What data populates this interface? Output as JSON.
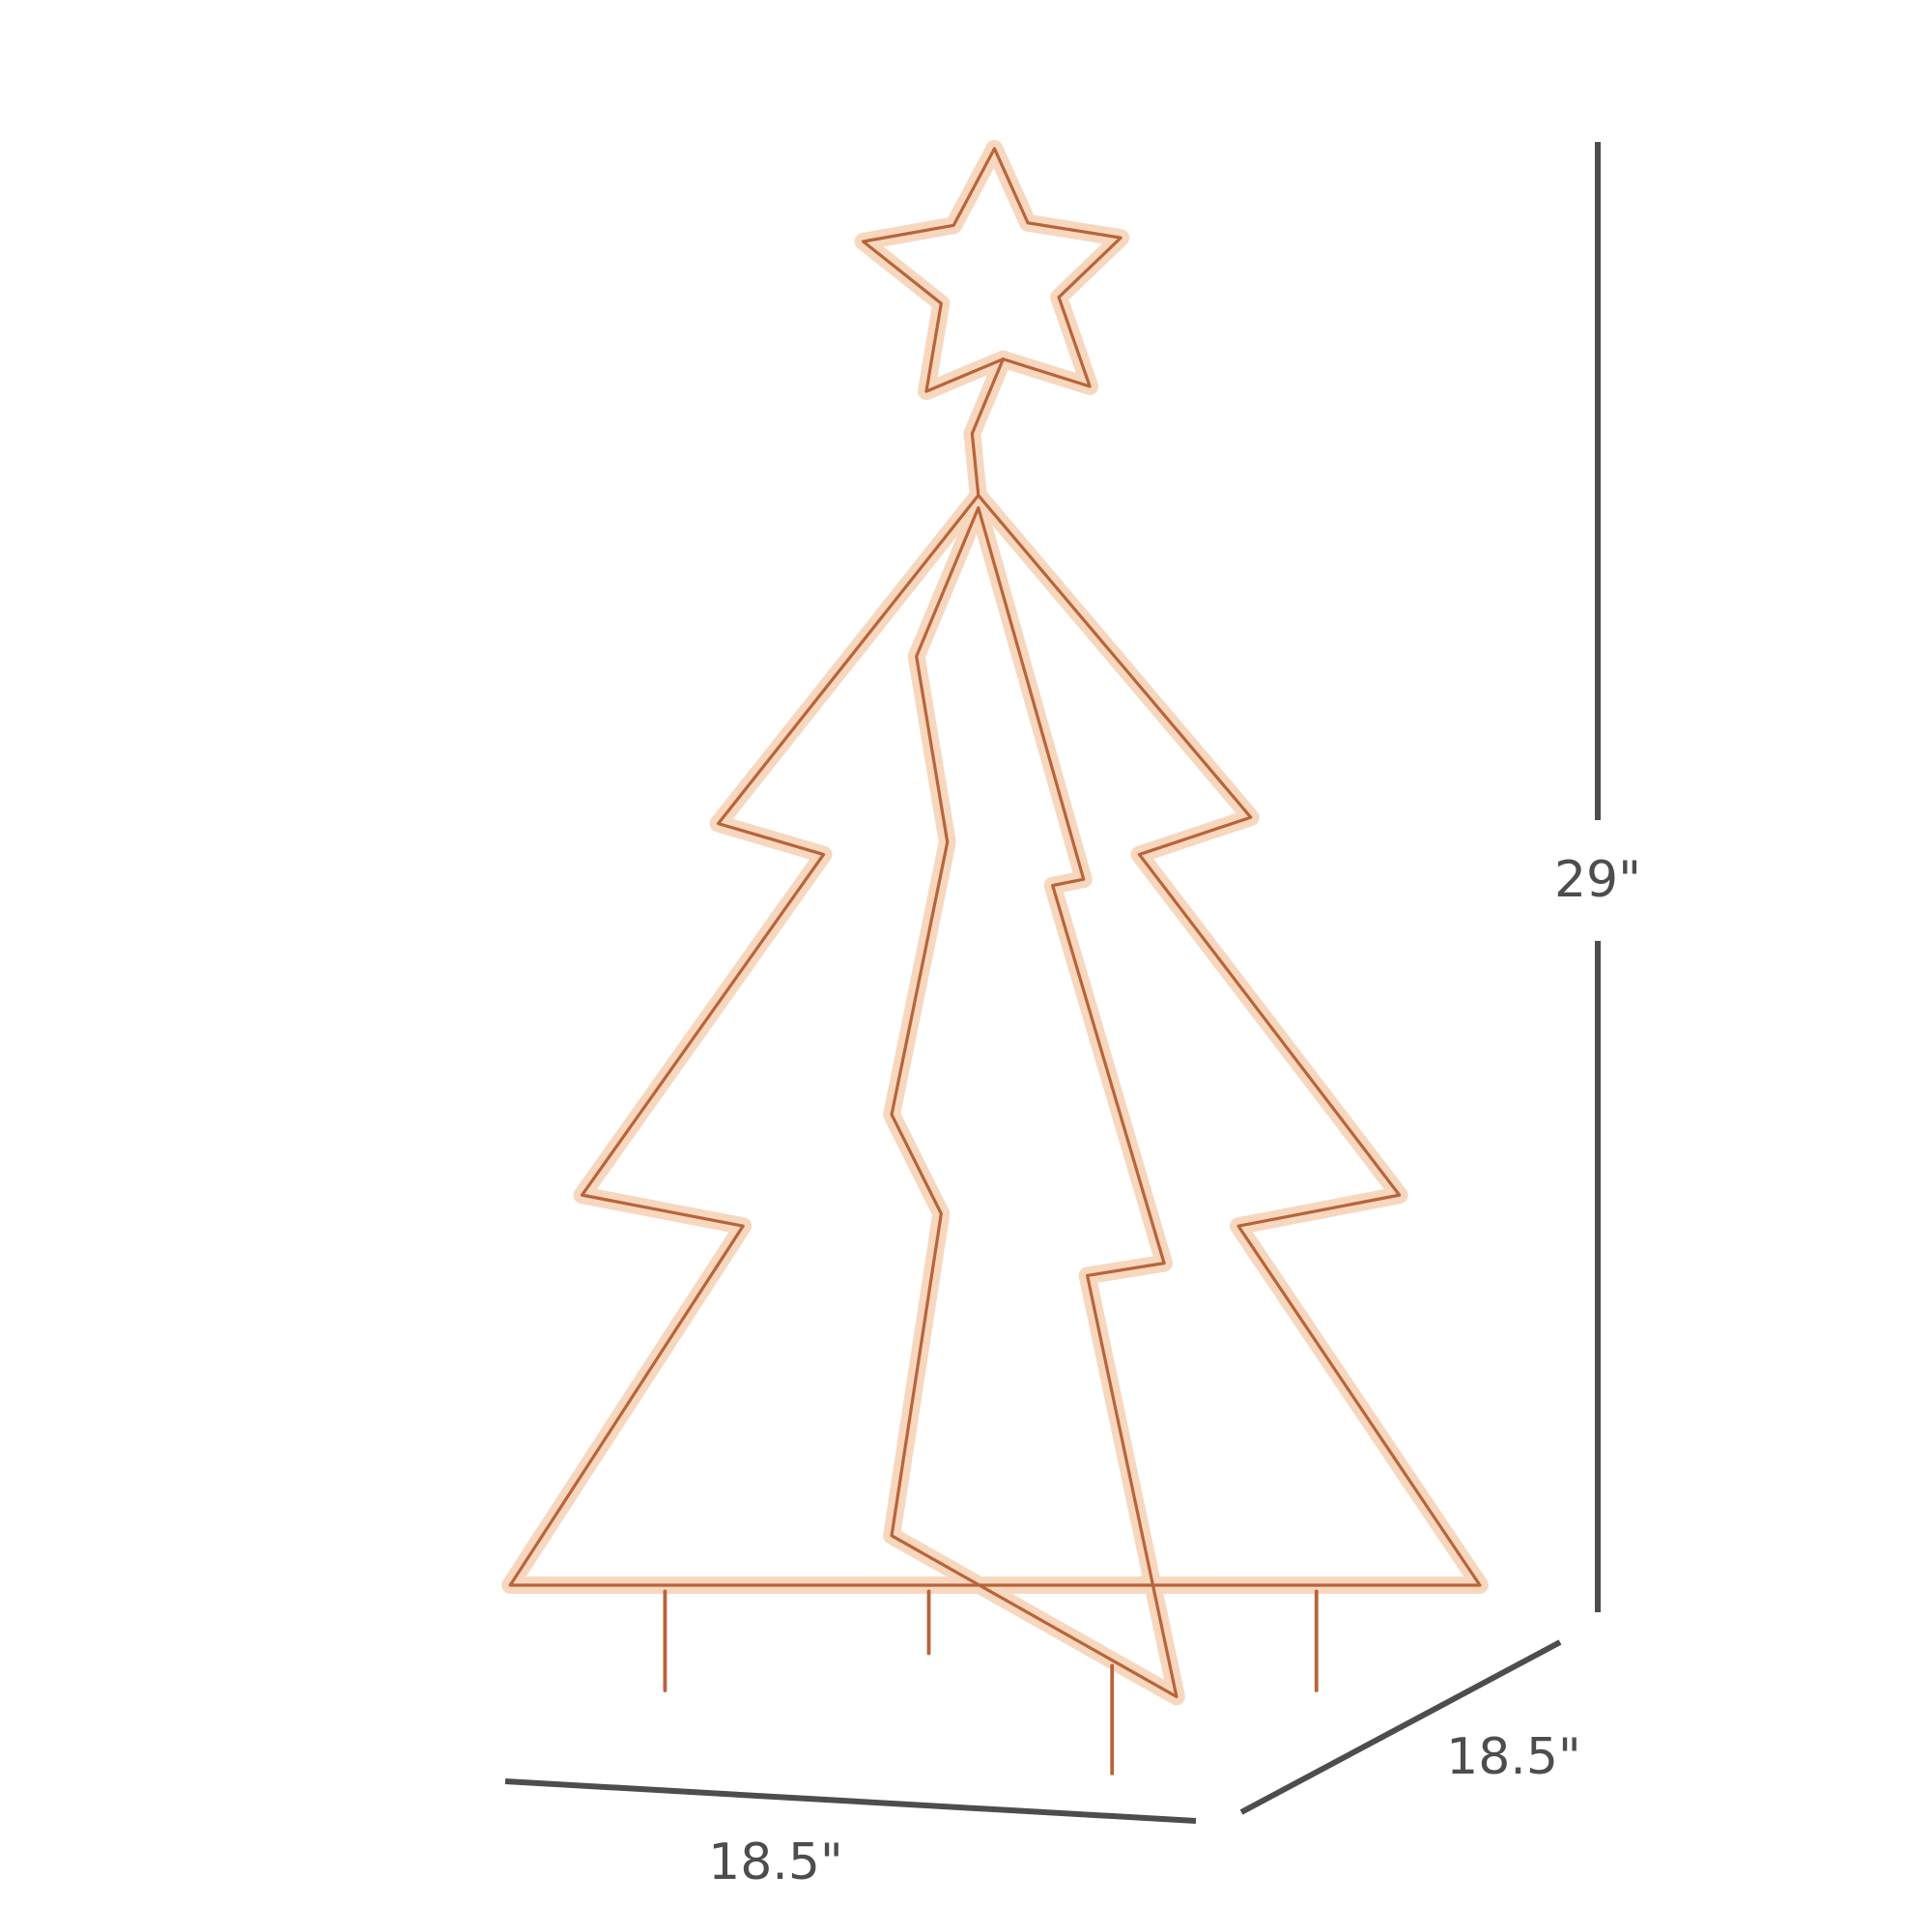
{
  "dimensions": {
    "height": "29\"",
    "width": "18.5\"",
    "depth": "18.5\""
  },
  "colors": {
    "dimension_line": "#4d4d4d",
    "light_glow": "#f7c9a6",
    "wire": "#b8643a"
  },
  "icons": [
    "christmas-tree-light-figure",
    "star-topper"
  ]
}
